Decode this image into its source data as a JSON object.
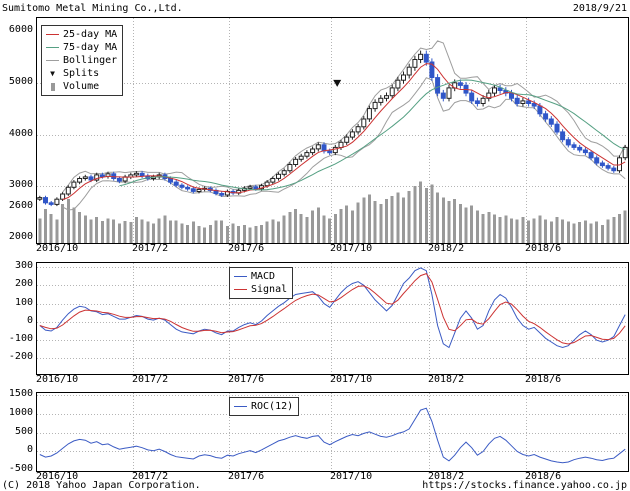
{
  "page": {
    "title": "Sumitomo Metal Mining Co.,Ltd.",
    "date": "2018/9/21",
    "footer_left": "(C) 2018 Yahoo Japan Corporation.",
    "footer_right": "https://stocks.finance.yahoo.co.jp"
  },
  "colors": {
    "ma_short": "#cc3333",
    "ma_long": "#55a083",
    "bollinger": "#9e9e9e",
    "volume": "#999999",
    "candle_up_fill": "#ffffff",
    "candle_up_stroke": "#222222",
    "candle_down": "#3056c8",
    "macd_line": "#3b5bc4",
    "signal_line": "#cc3333",
    "roc_line": "#3b5bc4",
    "grid": "#b4b4b4",
    "marker": "#111111"
  },
  "x_ticks": {
    "labels": [
      "2016/10",
      "2017/2",
      "2017/6",
      "2017/10",
      "2018/2",
      "2018/6"
    ],
    "fracs": [
      0,
      0.162,
      0.325,
      0.497,
      0.663,
      0.827
    ]
  },
  "chart_data": [
    {
      "type": "candlestick",
      "name": "price",
      "x_range": [
        "2016/10",
        "2018/9/21"
      ],
      "x_unit": "week",
      "y_axis": {
        "min": 2000,
        "max": 6000,
        "labels": [
          6000,
          5000,
          4000,
          3000,
          2600,
          2000
        ],
        "gridlines": [
          5000,
          4000,
          3000
        ]
      },
      "legend": [
        {
          "label": "25-day MA",
          "color": "#cc3333",
          "marker": "line"
        },
        {
          "label": "75-day MA",
          "color": "#55a083",
          "marker": "line"
        },
        {
          "label": "Bollinger",
          "color": "#9e9e9e",
          "marker": "line"
        },
        {
          "label": "Splits",
          "color": "#111111",
          "marker": "triangle"
        },
        {
          "label": "Volume",
          "color": "#999999",
          "marker": "bar"
        }
      ],
      "overlays": {
        "ma_short_window": 5,
        "ma_long_window": 15,
        "bollinger_window": 5,
        "bollinger_k": 2
      },
      "split_marker": {
        "x_frac": 0.508,
        "price": 4900
      },
      "close": [
        2780,
        2680,
        2650,
        2750,
        2850,
        2980,
        3080,
        3150,
        3180,
        3120,
        3220,
        3190,
        3240,
        3150,
        3100,
        3180,
        3220,
        3250,
        3200,
        3150,
        3180,
        3220,
        3150,
        3080,
        3020,
        2980,
        2950,
        2900,
        2940,
        2960,
        2920,
        2860,
        2830,
        2900,
        2870,
        2920,
        2960,
        2990,
        2950,
        3010,
        3080,
        3150,
        3230,
        3300,
        3420,
        3520,
        3580,
        3650,
        3720,
        3800,
        3680,
        3650,
        3750,
        3850,
        3950,
        4050,
        4150,
        4300,
        4500,
        4620,
        4700,
        4750,
        4900,
        5050,
        5150,
        5300,
        5450,
        5550,
        5400,
        5100,
        4800,
        4700,
        4900,
        5000,
        4950,
        4800,
        4650,
        4600,
        4700,
        4800,
        4900,
        4850,
        4800,
        4700,
        4600,
        4650,
        4600,
        4550,
        4400,
        4300,
        4200,
        4050,
        3900,
        3800,
        3750,
        3700,
        3650,
        3550,
        3450,
        3400,
        3350,
        3300,
        3550,
        3750
      ],
      "volume_relative": [
        38,
        52,
        45,
        36,
        60,
        68,
        55,
        48,
        42,
        36,
        40,
        34,
        38,
        36,
        30,
        34,
        32,
        40,
        36,
        33,
        30,
        38,
        42,
        35,
        35,
        30,
        28,
        33,
        26,
        24,
        28,
        35,
        35,
        26,
        30,
        26,
        28,
        24,
        26,
        28,
        33,
        36,
        33,
        42,
        48,
        52,
        45,
        40,
        50,
        55,
        42,
        38,
        45,
        52,
        58,
        50,
        62,
        70,
        75,
        65,
        60,
        68,
        72,
        78,
        70,
        80,
        88,
        95,
        85,
        90,
        78,
        70,
        65,
        68,
        60,
        55,
        58,
        50,
        45,
        48,
        44,
        40,
        42,
        38,
        36,
        40,
        35,
        38,
        42,
        36,
        33,
        40,
        36,
        33,
        30,
        32,
        35,
        30,
        33,
        28,
        36,
        40,
        45,
        50
      ]
    },
    {
      "type": "line",
      "name": "macd",
      "y_axis": {
        "labels": [
          300,
          200,
          100,
          0,
          -100,
          -200
        ],
        "gridlines": [
          300,
          200,
          100,
          0,
          -100,
          -200
        ]
      },
      "legend": [
        {
          "label": "MACD",
          "color": "#3b5bc4",
          "marker": "line"
        },
        {
          "label": "Signal",
          "color": "#cc3333",
          "marker": "line"
        }
      ],
      "series": [
        {
          "name": "MACD",
          "values": [
            -20,
            -45,
            -50,
            -30,
            10,
            45,
            70,
            85,
            80,
            60,
            55,
            40,
            45,
            30,
            15,
            15,
            25,
            35,
            30,
            15,
            10,
            20,
            10,
            -15,
            -40,
            -55,
            -60,
            -65,
            -50,
            -40,
            -45,
            -60,
            -70,
            -50,
            -50,
            -30,
            -15,
            -5,
            -15,
            5,
            35,
            60,
            85,
            105,
            130,
            150,
            155,
            160,
            165,
            140,
            100,
            80,
            120,
            160,
            190,
            210,
            220,
            200,
            160,
            120,
            90,
            60,
            90,
            150,
            210,
            240,
            280,
            295,
            280,
            150,
            -20,
            -120,
            -140,
            -60,
            20,
            60,
            20,
            -40,
            -20,
            60,
            120,
            150,
            130,
            80,
            20,
            -20,
            -40,
            -30,
            -60,
            -90,
            -110,
            -130,
            -140,
            -130,
            -100,
            -70,
            -50,
            -70,
            -100,
            -110,
            -100,
            -80,
            -20,
            40
          ]
        },
        {
          "name": "Signal",
          "derived_from": "MACD",
          "ema_k": 0.4
        }
      ]
    },
    {
      "type": "line",
      "name": "roc",
      "y_axis": {
        "labels": [
          1500,
          1000,
          500,
          0,
          -500
        ],
        "gridlines": [
          1500,
          1000,
          500,
          0
        ]
      },
      "legend": [
        {
          "label": "ROC(12)",
          "color": "#3b5bc4",
          "marker": "line"
        }
      ],
      "series": [
        {
          "name": "ROC(12)",
          "values": [
            -80,
            -150,
            -120,
            -40,
            80,
            200,
            280,
            320,
            300,
            220,
            260,
            180,
            200,
            120,
            60,
            90,
            110,
            140,
            100,
            40,
            20,
            60,
            0,
            -80,
            -140,
            -160,
            -180,
            -200,
            -120,
            -90,
            -110,
            -160,
            -180,
            -100,
            -120,
            -60,
            -20,
            20,
            -30,
            40,
            120,
            200,
            280,
            320,
            380,
            420,
            380,
            350,
            400,
            420,
            250,
            180,
            260,
            330,
            400,
            450,
            420,
            480,
            520,
            460,
            400,
            380,
            420,
            480,
            520,
            600,
            850,
            1100,
            1150,
            800,
            300,
            -150,
            -250,
            -100,
            100,
            250,
            100,
            -100,
            0,
            200,
            350,
            400,
            300,
            150,
            0,
            -80,
            -120,
            -80,
            -150,
            -200,
            -250,
            -280,
            -300,
            -280,
            -220,
            -180,
            -150,
            -180,
            -220,
            -240,
            -200,
            -180,
            -60,
            60
          ]
        }
      ]
    }
  ]
}
